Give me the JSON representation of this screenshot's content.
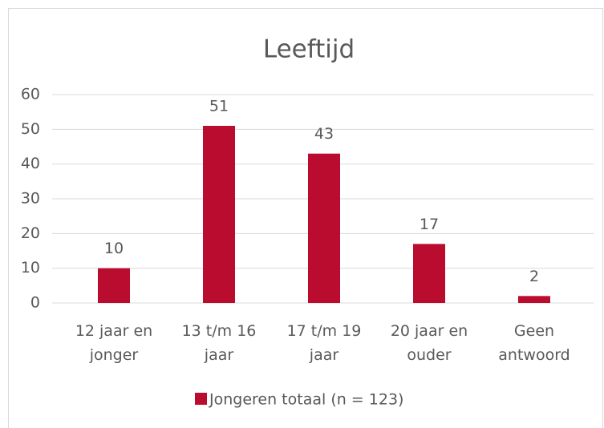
{
  "chart_data": {
    "type": "bar",
    "title": "Leeftijd",
    "categories": [
      "12 jaar en jonger",
      "13 t/m 16 jaar",
      "17 t/m 19 jaar",
      "20 jaar en ouder",
      "Geen antwoord"
    ],
    "series": [
      {
        "name": "Jongeren totaal (n = 123)",
        "color": "#ba0c2f",
        "values": [
          10,
          51,
          43,
          17,
          2
        ]
      }
    ],
    "ylim": [
      0,
      60
    ],
    "yticks": [
      0,
      10,
      20,
      30,
      40,
      50,
      60
    ],
    "grid": true,
    "data_labels": true,
    "legend": "bottom"
  }
}
